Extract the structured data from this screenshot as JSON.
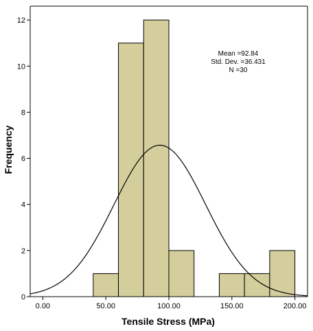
{
  "chart_data": {
    "type": "bar",
    "subtype": "histogram",
    "xlabel": "Tensile Stress (MPa)",
    "ylabel": "Frequency",
    "xlim": [
      -10,
      210
    ],
    "ylim": [
      0,
      12.6
    ],
    "x_ticks": [
      0,
      50,
      100,
      150,
      200
    ],
    "x_tick_labels": [
      "0.00",
      "50.00",
      "100.00",
      "150.00",
      "200.00"
    ],
    "y_ticks": [
      0,
      2,
      4,
      6,
      8,
      10,
      12
    ],
    "y_tick_labels": [
      "0",
      "2",
      "4",
      "6",
      "8",
      "10",
      "12"
    ],
    "bins": [
      {
        "start": 40,
        "end": 60,
        "count": 1
      },
      {
        "start": 60,
        "end": 80,
        "count": 11
      },
      {
        "start": 80,
        "end": 100,
        "count": 12
      },
      {
        "start": 100,
        "end": 120,
        "count": 2
      },
      {
        "start": 140,
        "end": 160,
        "count": 1
      },
      {
        "start": 160,
        "end": 180,
        "count": 1
      },
      {
        "start": 180,
        "end": 200,
        "count": 2
      }
    ],
    "normal_curve": {
      "mean": 92.84,
      "std": 36.431,
      "n": 30,
      "bin_width": 20
    },
    "stats_lines": [
      "Mean =92.84",
      "Std. Dev. =36.431",
      "N =30"
    ],
    "colors": {
      "bar_fill": "#d3ce9b",
      "bar_stroke": "#000000",
      "curve": "#000000",
      "frame": "#000000"
    },
    "grid": false
  }
}
